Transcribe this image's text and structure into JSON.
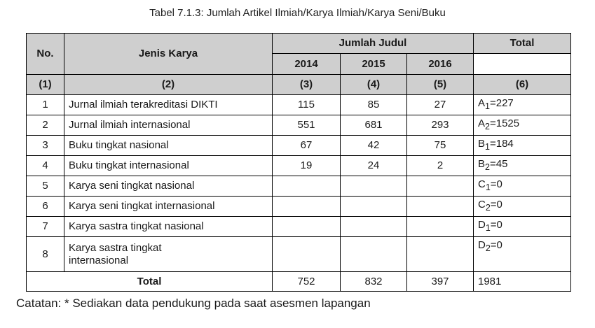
{
  "caption": "Tabel 7.1.3: Jumlah Artikel Ilmiah/Karya Ilmiah/Karya Seni/Buku",
  "header": {
    "no": "No.",
    "jenis": "Jenis Karya",
    "jumlah": "Jumlah Judul",
    "total": "Total",
    "y2014": "2014",
    "y2015": "2015",
    "y2016": "2016"
  },
  "colnums": [
    "(1)",
    "(2)",
    "(3)",
    "(4)",
    "(5)",
    "(6)"
  ],
  "rows": [
    {
      "no": "1",
      "jenis": "Jurnal ilmiah terakreditasi DIKTI",
      "v2014": "115",
      "v2015": "85",
      "v2016": "27",
      "total_letter": "A",
      "total_sub": "1",
      "total_rest": "=227"
    },
    {
      "no": "2",
      "jenis": "Jurnal ilmiah internasional",
      "v2014": "551",
      "v2015": "681",
      "v2016": "293",
      "total_letter": "A",
      "total_sub": "2",
      "total_rest": "=1525"
    },
    {
      "no": "3",
      "jenis": "Buku tingkat nasional",
      "v2014": "67",
      "v2015": "42",
      "v2016": "75",
      "total_letter": "B",
      "total_sub": "1",
      "total_rest": "=184"
    },
    {
      "no": "4",
      "jenis": "Buku tingkat internasional",
      "v2014": "19",
      "v2015": "24",
      "v2016": "2",
      "total_letter": "B",
      "total_sub": "2",
      "total_rest": "=45"
    },
    {
      "no": "5",
      "jenis": "Karya seni tingkat nasional",
      "v2014": "",
      "v2015": "",
      "v2016": "",
      "total_letter": "C",
      "total_sub": "1",
      "total_rest": "=0"
    },
    {
      "no": "6",
      "jenis": "Karya seni tingkat internasional",
      "v2014": "",
      "v2015": "",
      "v2016": "",
      "total_letter": "C",
      "total_sub": "2",
      "total_rest": "=0"
    },
    {
      "no": "7",
      "jenis": "Karya sastra tingkat nasional",
      "v2014": "",
      "v2015": "",
      "v2016": "",
      "total_letter": "D",
      "total_sub": "1",
      "total_rest": "=0"
    },
    {
      "no": "8",
      "jenis_line1": "Karya sastra tingkat",
      "jenis_line2": "internasional",
      "v2014": "",
      "v2015": "",
      "v2016": "",
      "total_letter": "D",
      "total_sub": "2",
      "total_rest": "=0"
    }
  ],
  "footer": {
    "label": "Total",
    "t2014": "752",
    "t2015": "832",
    "t2016": "397",
    "grand": "1981"
  },
  "notes": "Catatan: * Sediakan data pendukung pada saat asesmen lapangan"
}
